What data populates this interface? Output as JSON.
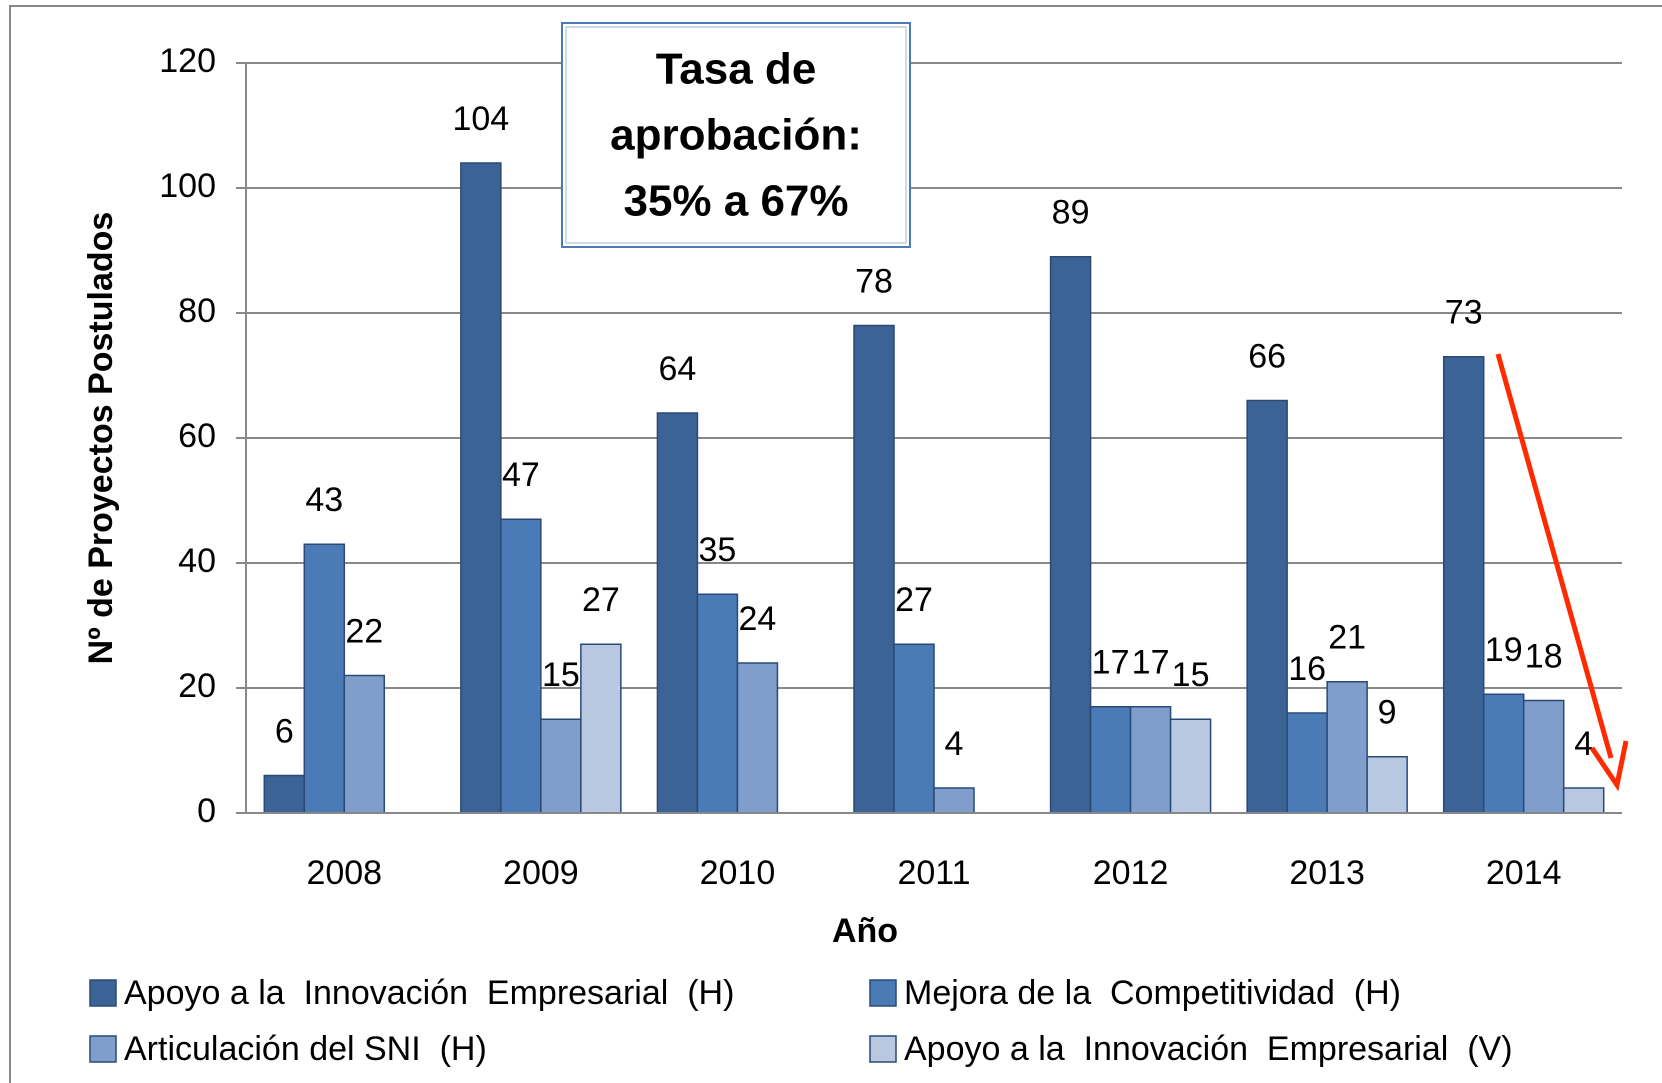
{
  "chart_data": {
    "type": "bar",
    "ylabel": "Nº  de Proyectos Postulados",
    "xlabel": "Año",
    "annotation": [
      "Tasa de",
      "aprobación:",
      "35% a 67%"
    ],
    "categories": [
      "2008",
      "2009",
      "2010",
      "2011",
      "2012",
      "2013",
      "2014"
    ],
    "series": [
      {
        "name": "Apoyo a la  Innovación  Empresarial  (H)",
        "color": "#3c6396",
        "values": [
          6,
          104,
          64,
          78,
          89,
          66,
          73
        ]
      },
      {
        "name": "Mejora de la  Competitividad  (H)",
        "color": "#4a7bb7",
        "values": [
          43,
          47,
          35,
          27,
          17,
          16,
          19
        ]
      },
      {
        "name": "Articulación del SNI  (H)",
        "color": "#7f9ecb",
        "values": [
          22,
          15,
          24,
          4,
          17,
          21,
          18
        ]
      },
      {
        "name": "Apoyo a la  Innovación  Empresarial  (V)",
        "color": "#b9c8e1",
        "values": [
          null,
          27,
          null,
          null,
          15,
          9,
          4
        ]
      }
    ],
    "ylim": [
      0,
      120
    ],
    "yticks": [
      0,
      20,
      40,
      60,
      80,
      100,
      120
    ],
    "grid": true
  }
}
